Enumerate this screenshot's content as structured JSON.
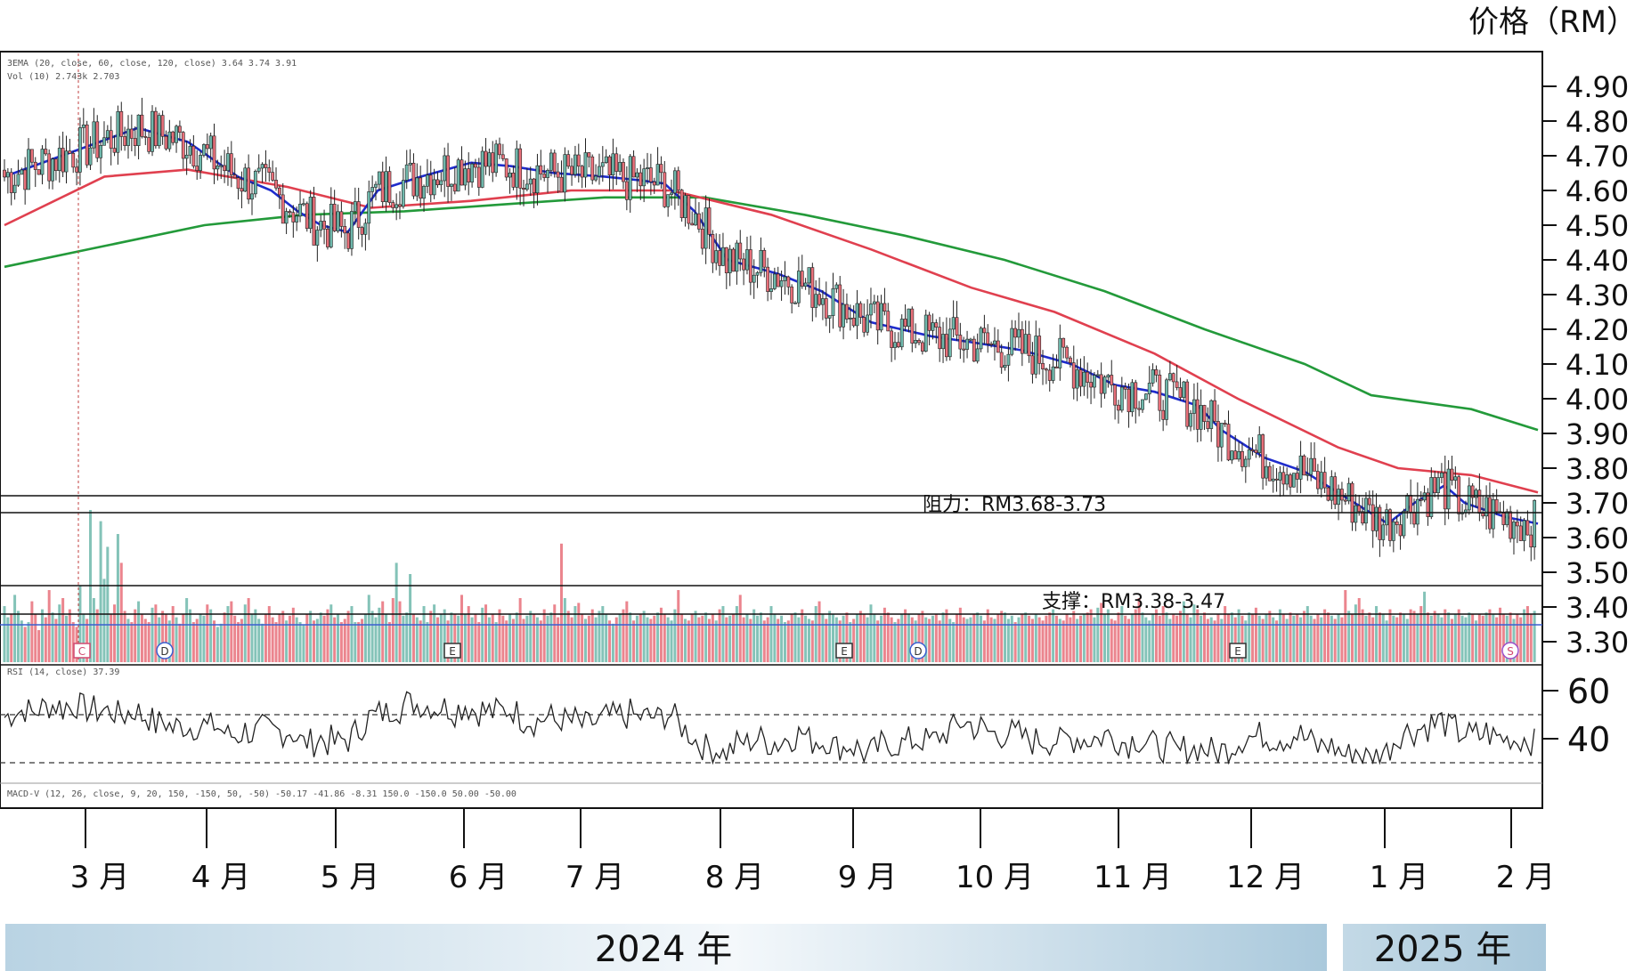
{
  "chart_data": {
    "type": "candlestick",
    "unit_label": "价格（RM）",
    "ylim": [
      3.25,
      4.98
    ],
    "y_ticks": [
      "4.90",
      "4.80",
      "4.70",
      "4.60",
      "4.50",
      "4.40",
      "4.30",
      "4.20",
      "4.10",
      "4.00",
      "3.90",
      "3.80",
      "3.70",
      "3.60",
      "3.50",
      "3.40",
      "3.30"
    ],
    "x_ticks": [
      "3 月",
      "4 月",
      "5 月",
      "6 月",
      "7 月",
      "8 月",
      "9 月",
      "10 月",
      "11 月",
      "12 月",
      "1 月",
      "2 月"
    ],
    "years": [
      "2024 年",
      "2025 年"
    ],
    "info_lines": {
      "ema": "3EMA (20, close, 60, close, 120, close)  3.64  3.74  3.91",
      "vol": "Vol (10)  2.743k  2.703",
      "rsi": "RSI (14, close)  37.39",
      "macd": "MACD-V (12, 26, close, 9, 20, 150, -150, 50, -50)  -50.17  -41.86  -8.31  150.0  -150.0  50.00  -50.00"
    },
    "resistance": {
      "label": "阻力：RM3.68-3.73",
      "low": 3.68,
      "high": 3.73
    },
    "support": {
      "label": "支撑：RM3.38-3.47",
      "low": 3.38,
      "high": 3.47
    },
    "rsi_ticks": [
      "60",
      "40"
    ],
    "rsi_range": [
      30,
      65
    ],
    "rsi_levels": [
      50,
      30
    ],
    "event_markers": [
      "C",
      "D",
      "E",
      "E",
      "D",
      "E",
      "S"
    ],
    "series_colors": {
      "ema20": "#1f2ccc",
      "ema60": "#e0404f",
      "ema120": "#239a3a",
      "up": "#6fb8ac",
      "down": "#e8707a",
      "vol_ma": "#3a5fd0",
      "rsi": "#222222"
    },
    "ema20": [
      [
        0,
        4.64
      ],
      [
        20,
        4.71
      ],
      [
        40,
        4.78
      ],
      [
        55,
        4.74
      ],
      [
        70,
        4.64
      ],
      [
        80,
        4.6
      ],
      [
        88,
        4.54
      ],
      [
        95,
        4.5
      ],
      [
        103,
        4.48
      ],
      [
        112,
        4.6
      ],
      [
        125,
        4.64
      ],
      [
        140,
        4.68
      ],
      [
        152,
        4.67
      ],
      [
        165,
        4.65
      ],
      [
        180,
        4.64
      ],
      [
        190,
        4.63
      ],
      [
        198,
        4.62
      ],
      [
        207,
        4.54
      ],
      [
        217,
        4.4
      ],
      [
        232,
        4.36
      ],
      [
        245,
        4.31
      ],
      [
        260,
        4.22
      ],
      [
        278,
        4.18
      ],
      [
        292,
        4.16
      ],
      [
        305,
        4.14
      ],
      [
        320,
        4.1
      ],
      [
        333,
        4.04
      ],
      [
        345,
        4.02
      ],
      [
        358,
        3.98
      ],
      [
        365,
        3.91
      ],
      [
        378,
        3.83
      ],
      [
        390,
        3.79
      ],
      [
        405,
        3.7
      ],
      [
        415,
        3.64
      ],
      [
        423,
        3.7
      ],
      [
        432,
        3.75
      ],
      [
        438,
        3.7
      ],
      [
        450,
        3.66
      ],
      [
        460,
        3.64
      ]
    ],
    "ema60": [
      [
        0,
        4.5
      ],
      [
        30,
        4.64
      ],
      [
        55,
        4.66
      ],
      [
        85,
        4.61
      ],
      [
        110,
        4.55
      ],
      [
        140,
        4.57
      ],
      [
        170,
        4.6
      ],
      [
        200,
        4.6
      ],
      [
        230,
        4.53
      ],
      [
        260,
        4.43
      ],
      [
        290,
        4.32
      ],
      [
        315,
        4.25
      ],
      [
        345,
        4.13
      ],
      [
        370,
        4.0
      ],
      [
        400,
        3.86
      ],
      [
        418,
        3.8
      ],
      [
        440,
        3.78
      ],
      [
        460,
        3.73
      ]
    ],
    "ema120": [
      [
        0,
        4.38
      ],
      [
        30,
        4.44
      ],
      [
        60,
        4.5
      ],
      [
        90,
        4.53
      ],
      [
        120,
        4.54
      ],
      [
        150,
        4.56
      ],
      [
        180,
        4.58
      ],
      [
        210,
        4.58
      ],
      [
        240,
        4.53
      ],
      [
        270,
        4.47
      ],
      [
        300,
        4.4
      ],
      [
        330,
        4.31
      ],
      [
        360,
        4.2
      ],
      [
        390,
        4.1
      ],
      [
        410,
        4.01
      ],
      [
        440,
        3.97
      ],
      [
        460,
        3.91
      ]
    ],
    "volume": [
      0.35,
      0.28,
      0.3,
      0.42,
      0.32,
      0.26,
      0.22,
      0.25,
      0.38,
      0.3,
      0.2,
      0.33,
      0.28,
      0.45,
      0.31,
      0.27,
      0.36,
      0.4,
      0.29,
      0.33,
      0.25,
      0.22,
      0.48,
      0.3,
      0.27,
      0.95,
      0.4,
      0.33,
      0.88,
      0.52,
      0.72,
      0.3,
      0.36,
      0.8,
      0.62,
      0.32,
      0.27,
      0.25,
      0.33,
      0.38,
      0.3,
      0.27,
      0.25,
      0.34,
      0.36,
      0.28,
      0.32,
      0.3,
      0.26,
      0.35,
      0.28,
      0.24,
      0.3,
      0.4,
      0.33,
      0.25,
      0.27,
      0.3,
      0.29,
      0.36,
      0.33,
      0.26,
      0.22,
      0.24,
      0.31,
      0.35,
      0.38,
      0.29,
      0.25,
      0.27,
      0.36,
      0.4,
      0.3,
      0.33,
      0.27,
      0.24,
      0.3,
      0.35,
      0.28,
      0.25,
      0.3,
      0.32,
      0.26,
      0.29,
      0.34,
      0.28,
      0.25,
      0.23,
      0.3,
      0.32,
      0.26,
      0.27,
      0.31,
      0.29,
      0.33,
      0.36,
      0.28,
      0.3,
      0.25,
      0.27,
      0.32,
      0.35,
      0.25,
      0.25,
      0.27,
      0.3,
      0.42,
      0.32,
      0.28,
      0.34,
      0.38,
      0.3,
      0.25,
      0.4,
      0.62,
      0.38,
      0.29,
      0.31,
      0.55,
      0.3,
      0.28,
      0.26,
      0.35,
      0.25,
      0.32,
      0.36,
      0.28,
      0.3,
      0.33,
      0.26,
      0.31,
      0.3,
      0.29,
      0.42,
      0.3,
      0.35,
      0.28,
      0.3,
      0.25,
      0.34,
      0.36,
      0.28,
      0.3,
      0.25,
      0.33,
      0.29,
      0.26,
      0.3,
      0.27,
      0.31,
      0.4,
      0.27,
      0.29,
      0.32,
      0.3,
      0.28,
      0.26,
      0.33,
      0.29,
      0.31,
      0.36,
      0.28,
      0.74,
      0.4,
      0.32,
      0.28,
      0.35,
      0.37,
      0.3,
      0.27,
      0.29,
      0.33,
      0.28,
      0.32,
      0.35,
      0.3,
      0.26,
      0.24,
      0.28,
      0.3,
      0.33,
      0.38,
      0.31,
      0.26,
      0.29,
      0.3,
      0.32,
      0.28,
      0.27,
      0.29,
      0.31,
      0.34,
      0.3,
      0.28,
      0.26,
      0.33,
      0.45,
      0.3,
      0.27,
      0.26,
      0.3,
      0.32,
      0.28,
      0.29,
      0.31,
      0.27,
      0.3,
      0.26,
      0.33,
      0.35,
      0.28,
      0.29,
      0.3,
      0.35,
      0.42,
      0.28,
      0.3,
      0.27,
      0.33,
      0.29,
      0.31,
      0.26,
      0.28,
      0.35,
      0.3,
      0.27,
      0.29,
      0.25,
      0.26,
      0.3,
      0.31,
      0.28,
      0.33,
      0.29,
      0.27,
      0.26,
      0.35,
      0.38,
      0.3,
      0.27,
      0.32,
      0.3,
      0.28,
      0.26,
      0.29,
      0.31,
      0.25,
      0.27,
      0.3,
      0.32,
      0.3,
      0.28,
      0.36,
      0.3,
      0.26,
      0.29,
      0.34,
      0.31,
      0.28,
      0.25,
      0.27,
      0.3,
      0.33,
      0.3,
      0.28,
      0.26,
      0.3,
      0.32,
      0.28,
      0.27,
      0.29,
      0.3,
      0.26,
      0.31,
      0.33,
      0.27,
      0.25,
      0.3,
      0.34,
      0.28,
      0.27,
      0.28,
      0.3,
      0.31,
      0.29,
      0.26,
      0.33,
      0.28,
      0.27,
      0.3,
      0.32,
      0.31,
      0.27,
      0.29,
      0.25,
      0.28,
      0.3,
      0.31,
      0.29,
      0.27,
      0.3,
      0.28,
      0.26,
      0.29,
      0.31,
      0.33,
      0.29,
      0.27,
      0.26,
      0.3,
      0.28,
      0.32,
      0.27,
      0.29,
      0.3,
      0.31,
      0.33,
      0.28,
      0.34,
      0.37,
      0.3,
      0.33,
      0.27,
      0.26,
      0.31,
      0.35,
      0.29,
      0.27,
      0.3,
      0.33,
      0.4,
      0.31,
      0.28,
      0.26,
      0.3,
      0.33,
      0.29,
      0.35,
      0.31,
      0.27,
      0.3,
      0.29,
      0.32,
      0.38,
      0.3,
      0.28,
      0.36,
      0.33,
      0.29,
      0.31,
      0.27,
      0.28,
      0.26,
      0.3,
      0.27,
      0.35,
      0.3,
      0.31,
      0.28,
      0.33,
      0.29,
      0.26,
      0.31,
      0.3,
      0.34,
      0.29,
      0.27,
      0.3,
      0.32,
      0.28,
      0.26,
      0.33,
      0.3,
      0.27,
      0.31,
      0.29,
      0.3,
      0.28,
      0.32,
      0.35,
      0.29,
      0.27,
      0.3,
      0.28,
      0.33,
      0.31,
      0.29,
      0.27,
      0.3,
      0.28,
      0.45,
      0.32,
      0.3,
      0.36,
      0.4,
      0.33,
      0.29,
      0.31,
      0.28,
      0.35,
      0.31,
      0.3,
      0.26,
      0.33,
      0.29,
      0.28,
      0.31,
      0.3,
      0.27,
      0.33,
      0.32,
      0.3,
      0.35,
      0.44,
      0.31,
      0.29,
      0.32,
      0.3,
      0.28,
      0.33,
      0.31,
      0.27,
      0.3,
      0.33,
      0.29,
      0.28,
      0.31,
      0.3,
      0.26,
      0.3,
      0.29,
      0.31,
      0.33,
      0.3,
      0.28,
      0.34,
      0.3,
      0.29,
      0.31,
      0.27,
      0.3,
      0.28,
      0.33,
      0.35,
      0.3,
      0.32
    ]
  }
}
